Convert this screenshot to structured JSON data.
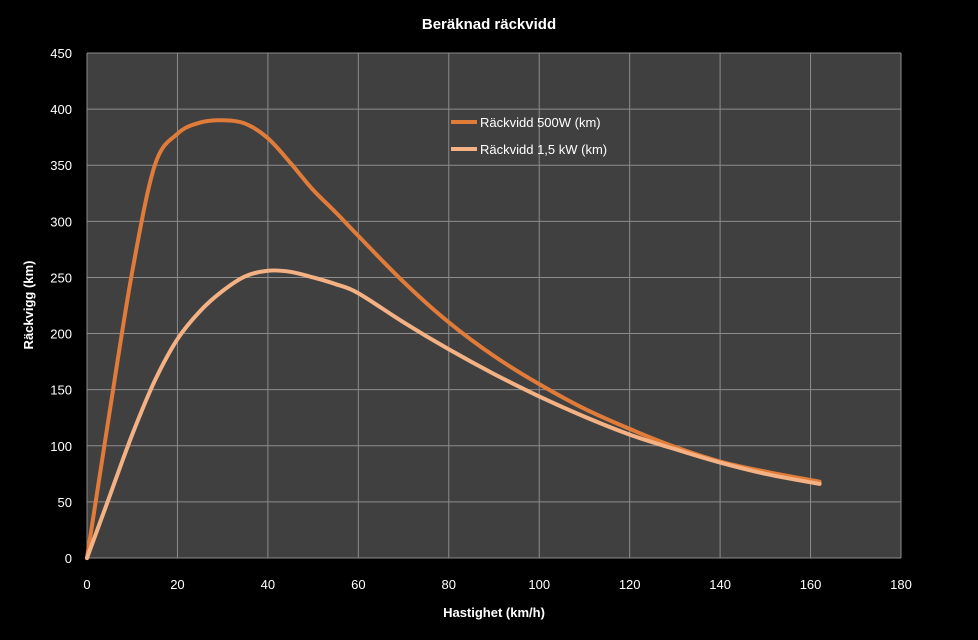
{
  "chart_data": {
    "type": "line",
    "title": "Beräknad räckvidd",
    "xlabel": "Hastighet (km/h)",
    "ylabel": "Räckvigg (km)",
    "xlim": [
      0,
      180
    ],
    "ylim": [
      0,
      450
    ],
    "xticks": [
      0,
      20,
      40,
      60,
      80,
      100,
      120,
      140,
      160,
      180
    ],
    "yticks": [
      0,
      50,
      100,
      150,
      200,
      250,
      300,
      350,
      400,
      450
    ],
    "grid": true,
    "legend_position": "top-center",
    "background": "#404040",
    "series": [
      {
        "name": "Räckvidd 500W (km)",
        "color": "#E07B39",
        "x": [
          0,
          5,
          10,
          15,
          20,
          25,
          30,
          35,
          40,
          45,
          50,
          55,
          60,
          70,
          80,
          90,
          100,
          110,
          120,
          130,
          140,
          150,
          162
        ],
        "y": [
          0,
          130,
          255,
          350,
          378,
          388,
          390,
          387,
          374,
          352,
          328,
          308,
          287,
          246,
          210,
          180,
          155,
          133,
          115,
          99,
          86,
          77,
          68
        ]
      },
      {
        "name": "Räckvidd 1,5 kW (km)",
        "color": "#F4B183",
        "x": [
          0,
          5,
          10,
          15,
          20,
          25,
          30,
          35,
          40,
          45,
          50,
          55,
          60,
          70,
          80,
          90,
          100,
          110,
          120,
          130,
          140,
          150,
          162
        ],
        "y": [
          0,
          55,
          110,
          158,
          195,
          220,
          238,
          251,
          256,
          255,
          250,
          244,
          236,
          210,
          186,
          164,
          144,
          126,
          110,
          97,
          85,
          75,
          66
        ]
      }
    ]
  }
}
